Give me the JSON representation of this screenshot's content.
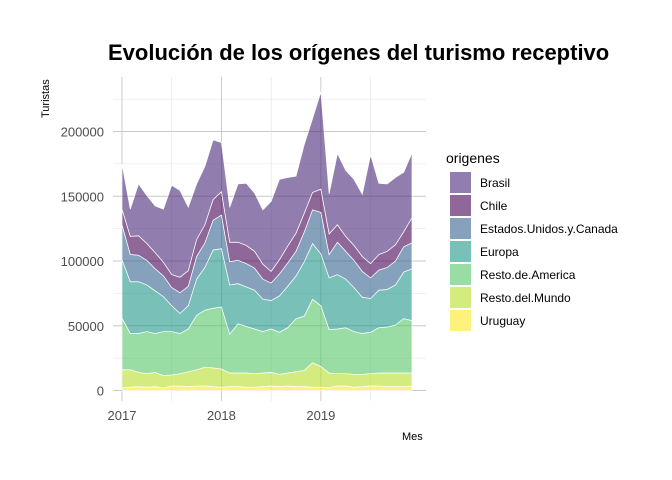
{
  "chart_data": {
    "type": "area",
    "stacked": true,
    "title": "Evolución de los orígenes del turismo receptivo",
    "xlabel": "Mes",
    "ylabel": "Turistas",
    "x_ticks": [
      "2017",
      "2018",
      "2019"
    ],
    "y_ticks": [
      "0",
      "50000",
      "100000",
      "150000",
      "200000"
    ],
    "ylim": [
      0,
      235000
    ],
    "grid": true,
    "legend_title": "origenes",
    "legend_position": "right",
    "x": [
      "2017-01",
      "2017-02",
      "2017-03",
      "2017-04",
      "2017-05",
      "2017-06",
      "2017-07",
      "2017-08",
      "2017-09",
      "2017-10",
      "2017-11",
      "2017-12",
      "2018-01",
      "2018-02",
      "2018-03",
      "2018-04",
      "2018-05",
      "2018-06",
      "2018-07",
      "2018-08",
      "2018-09",
      "2018-10",
      "2018-11",
      "2018-12",
      "2019-01",
      "2019-02",
      "2019-03",
      "2019-04",
      "2019-05",
      "2019-06",
      "2019-07",
      "2019-08",
      "2019-09",
      "2019-10",
      "2019-11",
      "2019-12"
    ],
    "series": [
      {
        "name": "Uruguay",
        "color": "#FDE725",
        "values": [
          2000,
          2500,
          3000,
          2500,
          3000,
          2000,
          3500,
          3500,
          3000,
          3500,
          3500,
          3000,
          2500,
          3000,
          3000,
          2500,
          2500,
          3000,
          3500,
          3000,
          3500,
          3000,
          3000,
          2500,
          2500,
          2000,
          3500,
          3500,
          2500,
          3000,
          3500,
          3500,
          3000,
          3000,
          3000,
          3500
        ]
      },
      {
        "name": "Resto.del.Mundo",
        "color": "#B8DE29",
        "values": [
          14000,
          13500,
          11000,
          10500,
          11000,
          9500,
          8500,
          9500,
          11500,
          12500,
          14500,
          14500,
          14000,
          10500,
          10500,
          11000,
          10500,
          10500,
          10500,
          9500,
          10000,
          11500,
          12500,
          19000,
          16000,
          11500,
          9500,
          9500,
          10000,
          9500,
          9500,
          10000,
          10500,
          10500,
          10500,
          10000
        ]
      },
      {
        "name": "Resto.de.America",
        "color": "#55C667",
        "values": [
          40000,
          28000,
          30000,
          32500,
          30000,
          34000,
          33500,
          31000,
          33000,
          42000,
          44000,
          46000,
          48000,
          30000,
          38000,
          36000,
          34500,
          32000,
          33500,
          32500,
          35000,
          41000,
          42000,
          49000,
          47000,
          33500,
          34500,
          35500,
          33000,
          31500,
          32000,
          35000,
          35500,
          37000,
          42000,
          40500
        ]
      },
      {
        "name": "Europa",
        "color": "#1F968B",
        "values": [
          45000,
          40000,
          40000,
          36000,
          33000,
          27000,
          20000,
          15500,
          18000,
          28000,
          33000,
          45000,
          45000,
          38000,
          31000,
          30500,
          30000,
          25000,
          22000,
          28000,
          32000,
          33000,
          42000,
          43000,
          40000,
          40000,
          42000,
          37500,
          34000,
          28000,
          26000,
          29000,
          29000,
          31000,
          36000,
          40000
        ]
      },
      {
        "name": "Estados.Unidos.y.Canada",
        "color": "#33638D",
        "values": [
          27000,
          21000,
          20500,
          19000,
          17000,
          16000,
          14000,
          16000,
          15000,
          17500,
          19000,
          23000,
          26000,
          18000,
          18000,
          18000,
          17000,
          15500,
          13500,
          17000,
          18000,
          19000,
          23000,
          26000,
          32000,
          18000,
          25000,
          21500,
          21000,
          20000,
          16000,
          15500,
          17000,
          18500,
          19500,
          20000
        ]
      },
      {
        "name": "Chile",
        "color": "#440154",
        "values": [
          12000,
          14000,
          15000,
          13000,
          12500,
          10500,
          10000,
          12000,
          12000,
          13000,
          14000,
          16000,
          18000,
          15000,
          14000,
          14000,
          13000,
          11500,
          9000,
          11000,
          13000,
          14000,
          14500,
          13500,
          18000,
          16000,
          13500,
          11500,
          11500,
          11500,
          11000,
          12000,
          12500,
          12500,
          11500,
          19500
        ]
      },
      {
        "name": "Brasil",
        "color": "#482878",
        "values": [
          35000,
          21000,
          40000,
          37000,
          36000,
          41000,
          69000,
          67000,
          49000,
          43000,
          45000,
          46000,
          38000,
          27000,
          45000,
          48000,
          45000,
          42000,
          54000,
          62000,
          53000,
          44000,
          53000,
          57000,
          75000,
          31000,
          55000,
          51000,
          51000,
          48000,
          84000,
          55000,
          52000,
          52000,
          46000,
          50000
        ]
      }
    ]
  },
  "legend": {
    "title": "origenes",
    "items": [
      "Brasil",
      "Chile",
      "Estados.Unidos.y.Canada",
      "Europa",
      "Resto.de.America",
      "Resto.del.Mundo",
      "Uruguay"
    ]
  }
}
